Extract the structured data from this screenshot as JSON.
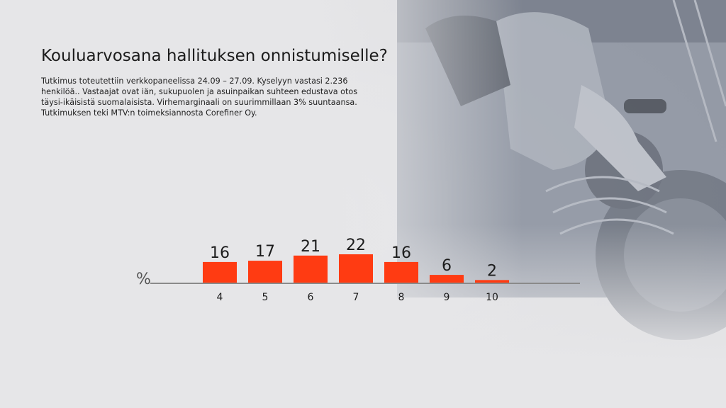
{
  "header": {
    "title": "Kouluarvosana hallituksen onnistumiselle?",
    "description": "Tutkimus toteutettiin verkkopaneelissa 24.09 – 27.09. Kyselyyn vastasi 2.236 henkilöä.. Vastaajat ovat iän, sukupuolen ja asuinpaikan suhteen edustava otos täysi-ikäisistä suomalaisista. Virhemarginaali on suurimmillaan 3% suuntaansa. Tutkimuksen teki MTV:n toimeksiannosta Corefiner Oy."
  },
  "chart_data": {
    "type": "bar",
    "title": "Kouluarvosana hallituksen onnistumiselle?",
    "categories": [
      "4",
      "5",
      "6",
      "7",
      "8",
      "9",
      "10"
    ],
    "values": [
      16,
      17,
      21,
      22,
      16,
      6,
      2
    ],
    "unit_label": "%",
    "xlabel": "",
    "ylabel": "%",
    "ylim": [
      0,
      22
    ],
    "bar_color": "#ff3b12",
    "grid": false
  }
}
